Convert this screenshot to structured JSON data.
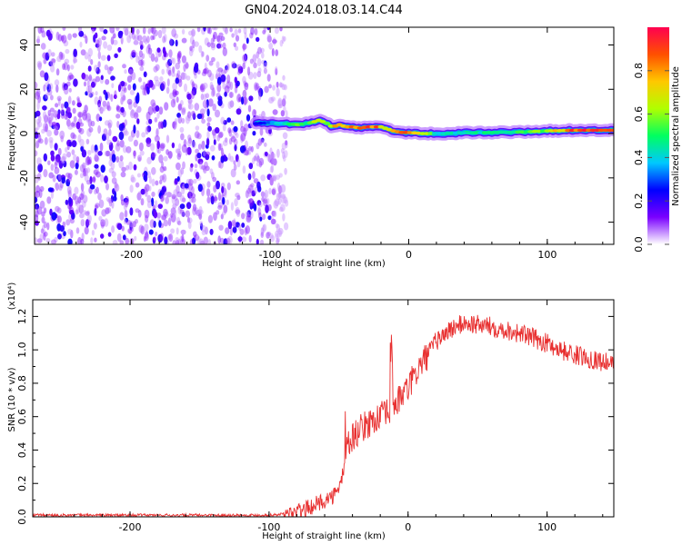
{
  "title": "GN04.2024.018.03.14.C44",
  "chart_data": [
    {
      "type": "heatmap",
      "xlabel": "Height of straight line (km)",
      "ylabel": "Frequency (Hz)",
      "xlim": [
        -270,
        148
      ],
      "ylim": [
        -50,
        48
      ],
      "xticks": [
        "-200",
        "-100",
        "0",
        "100"
      ],
      "xtick_values": [
        -200,
        -100,
        0,
        100
      ],
      "yticks": [
        "-40",
        "-20",
        "0",
        "20",
        "40"
      ],
      "ytick_values": [
        -40,
        -20,
        0,
        20,
        40
      ],
      "noise_x_range": [
        -270,
        -100
      ],
      "signal_track": {
        "x": [
          -110,
          -100,
          -90,
          -80,
          -70,
          -65,
          -60,
          -55,
          -50,
          -45,
          -40,
          -35,
          -30,
          -25,
          -20,
          -15,
          -10,
          -5,
          0,
          10,
          20,
          40,
          60,
          80,
          100,
          120,
          148
        ],
        "y": [
          4.5,
          5,
          4.5,
          4,
          5,
          6,
          5,
          3,
          4,
          3,
          3,
          2.5,
          3,
          3,
          3,
          2,
          1,
          0.5,
          0.5,
          0,
          0,
          0.3,
          0.5,
          0.7,
          1.2,
          1.5,
          1.5
        ],
        "peak_amplitude": [
          0.25,
          0.35,
          0.45,
          0.55,
          0.6,
          0.7,
          0.6,
          0.75,
          0.8,
          0.85,
          0.9,
          0.9,
          0.9,
          0.9,
          0.85,
          0.7,
          0.8,
          0.85,
          0.9,
          0.75,
          0.45,
          0.45,
          0.5,
          0.55,
          0.65,
          0.95,
          0.95
        ]
      },
      "colorbar": {
        "label": "Normalized spectral amplitude",
        "range": [
          0,
          1
        ],
        "ticks": [
          "0.0",
          "0.2",
          "0.4",
          "0.6",
          "0.8"
        ],
        "tick_values": [
          0,
          0.2,
          0.4,
          0.6,
          0.8
        ],
        "colors": [
          "#ffffff",
          "#7a00ff",
          "#0000ff",
          "#00c8ff",
          "#00ff60",
          "#b0ff00",
          "#ffc800",
          "#ff5000",
          "#ff0050"
        ]
      }
    },
    {
      "type": "line",
      "ylabel": "SNR (10 * v/v)",
      "exponent_label": "(x10⁴)",
      "xlabel": "Height of straight line (km)",
      "xlim": [
        -270,
        148
      ],
      "ylim": [
        0,
        1.3
      ],
      "xticks": [
        "-200",
        "-100",
        "0",
        "100"
      ],
      "xtick_values": [
        -200,
        -100,
        0,
        100
      ],
      "yticks": [
        "0.0",
        "0.2",
        "0.4",
        "0.6",
        "0.8",
        "1.0",
        "1.2"
      ],
      "ytick_values": [
        0,
        0.2,
        0.4,
        0.6,
        0.8,
        1.0,
        1.2
      ],
      "color": "#e83030",
      "x": [
        -270,
        -200,
        -100,
        -85,
        -75,
        -65,
        -55,
        -50,
        -46,
        -44,
        -40,
        -35,
        -30,
        -25,
        -20,
        -15,
        -10,
        -5,
        0,
        5,
        10,
        15,
        20,
        30,
        40,
        50,
        60,
        70,
        80,
        90,
        100,
        110,
        120,
        130,
        140,
        148
      ],
      "y": [
        0.01,
        0.01,
        0.01,
        0.02,
        0.04,
        0.08,
        0.12,
        0.15,
        0.3,
        0.42,
        0.48,
        0.52,
        0.55,
        0.58,
        0.6,
        0.62,
        0.66,
        0.72,
        0.77,
        0.85,
        0.92,
        0.98,
        1.05,
        1.12,
        1.16,
        1.15,
        1.14,
        1.12,
        1.1,
        1.07,
        1.04,
        1.0,
        0.97,
        0.95,
        0.93,
        0.91
      ]
    }
  ]
}
